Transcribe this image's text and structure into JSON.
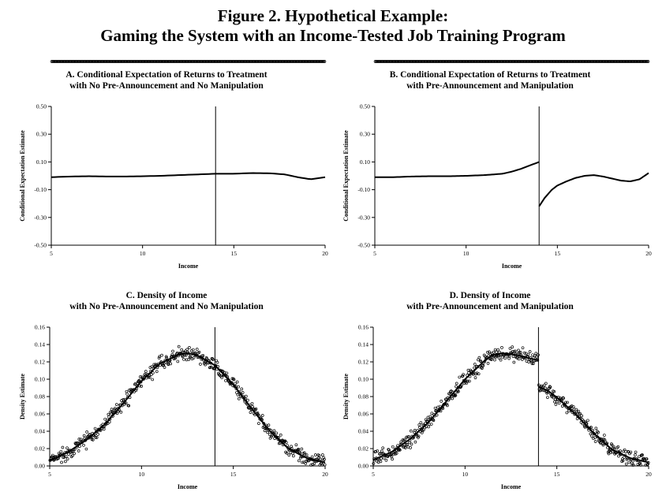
{
  "figure": {
    "title_line1": "Figure 2. Hypothetical Example:",
    "title_line2": "Gaming the System with an Income-Tested Job Training Program"
  },
  "colors": {
    "ink": "#000000",
    "background": "#ffffff"
  },
  "chart_data": [
    {
      "id": "A",
      "type": "scatter",
      "title_line1": "A. Conditional Expectation of Returns to Treatment",
      "title_line2": "with No Pre-Announcement and No Manipulation",
      "xlabel": "Income",
      "ylabel": "Conditional Expectation Estimate",
      "xlim": [
        5,
        20
      ],
      "ylim": [
        -0.5,
        0.5
      ],
      "xticks": [
        5,
        10,
        15,
        20
      ],
      "xtick_labels": [
        "5",
        "10",
        "15",
        "20"
      ],
      "yticks": [
        -0.5,
        -0.3,
        -0.1,
        0.1,
        0.3,
        0.5
      ],
      "ytick_labels": [
        "-0.50",
        "-0.30",
        "-0.10",
        "0.10",
        "0.30",
        "0.50"
      ],
      "cutoff": 14,
      "fit_segments": [
        {
          "x": [
            5,
            6,
            7,
            8,
            9,
            10,
            11,
            12,
            13,
            14,
            15,
            16,
            17,
            17.8,
            18.5,
            19.2,
            20
          ],
          "y": [
            -0.01,
            -0.005,
            -0.003,
            -0.005,
            -0.005,
            -0.003,
            0.0,
            0.005,
            0.01,
            0.015,
            0.015,
            0.02,
            0.018,
            0.01,
            -0.01,
            -0.025,
            -0.01
          ]
        }
      ],
      "points_model": {
        "n": 300,
        "pattern": "smooth",
        "noise_center": 0.06,
        "noise_edges": 0.2,
        "seed": 11
      }
    },
    {
      "id": "B",
      "type": "scatter",
      "title_line1": "B. Conditional Expectation of Returns to Treatment",
      "title_line2": "with Pre-Announcement and Manipulation",
      "xlabel": "Income",
      "ylabel": "Conditional Expectation Estimate",
      "xlim": [
        5,
        20
      ],
      "ylim": [
        -0.5,
        0.5
      ],
      "xticks": [
        5,
        10,
        15,
        20
      ],
      "xtick_labels": [
        "5",
        "10",
        "15",
        "20"
      ],
      "yticks": [
        -0.5,
        -0.3,
        -0.1,
        0.1,
        0.3,
        0.5
      ],
      "ytick_labels": [
        "-0.50",
        "-0.30",
        "-0.10",
        "0.10",
        "0.30",
        "0.50"
      ],
      "cutoff": 14,
      "fit_segments": [
        {
          "x": [
            5,
            6,
            7,
            8,
            9,
            10,
            11,
            12,
            12.5,
            13,
            13.5,
            14
          ],
          "y": [
            -0.01,
            -0.01,
            -0.005,
            -0.003,
            -0.003,
            0.0,
            0.005,
            0.015,
            0.03,
            0.05,
            0.075,
            0.1
          ]
        },
        {
          "x": [
            14,
            14.3,
            14.7,
            15,
            15.5,
            16,
            16.5,
            17,
            17.5,
            18,
            18.5,
            19,
            19.5,
            20
          ],
          "y": [
            -0.22,
            -0.16,
            -0.1,
            -0.07,
            -0.04,
            -0.015,
            0.0,
            0.005,
            -0.005,
            -0.02,
            -0.035,
            -0.04,
            -0.025,
            0.02
          ]
        }
      ],
      "points_model": {
        "n": 300,
        "pattern": "jump",
        "noise_center": 0.06,
        "noise_edges": 0.2,
        "seed": 23
      }
    },
    {
      "id": "C",
      "type": "scatter",
      "title_line1": "C. Density of Income",
      "title_line2": "with No Pre-Announcement and No Manipulation",
      "xlabel": "Income",
      "ylabel": "Density Estimate",
      "xlim": [
        5,
        20
      ],
      "ylim": [
        0,
        0.16
      ],
      "xticks": [
        5,
        10,
        15,
        20
      ],
      "xtick_labels": [
        "5",
        "10",
        "15",
        "20"
      ],
      "yticks": [
        0,
        0.02,
        0.04,
        0.06,
        0.08,
        0.1,
        0.12,
        0.14,
        0.16
      ],
      "ytick_labels": [
        "0.00",
        "0.02",
        "0.04",
        "0.06",
        "0.08",
        "0.10",
        "0.12",
        "0.14",
        "0.16"
      ],
      "cutoff": 14,
      "fit_segments": [
        {
          "x": [
            5,
            6,
            7,
            8,
            9,
            10,
            11,
            12,
            12.5,
            13,
            14,
            15,
            16,
            17,
            18,
            19,
            20
          ],
          "y": [
            0.006,
            0.016,
            0.03,
            0.048,
            0.072,
            0.098,
            0.118,
            0.128,
            0.13,
            0.128,
            0.116,
            0.094,
            0.066,
            0.04,
            0.02,
            0.009,
            0.004
          ]
        }
      ],
      "points_model": {
        "n": 500,
        "pattern": "smooth",
        "noise": 0.005,
        "seed": 37
      }
    },
    {
      "id": "D",
      "type": "scatter",
      "title_line1": "D. Density of Income",
      "title_line2": "with Pre-Announcement and Manipulation",
      "xlabel": "Income",
      "ylabel": "Density Estimate",
      "xlim": [
        5,
        20
      ],
      "ylim": [
        0,
        0.16
      ],
      "xticks": [
        5,
        10,
        15,
        20
      ],
      "xtick_labels": [
        "5",
        "10",
        "15",
        "20"
      ],
      "yticks": [
        0,
        0.02,
        0.04,
        0.06,
        0.08,
        0.1,
        0.12,
        0.14,
        0.16
      ],
      "ytick_labels": [
        "0.00",
        "0.02",
        "0.04",
        "0.06",
        "0.08",
        "0.10",
        "0.12",
        "0.14",
        "0.16"
      ],
      "cutoff": 14,
      "fit_segments": [
        {
          "x": [
            5,
            6,
            7,
            8,
            9,
            10,
            11,
            11.5,
            12,
            12.5,
            13,
            13.5,
            14
          ],
          "y": [
            0.007,
            0.016,
            0.031,
            0.05,
            0.075,
            0.1,
            0.12,
            0.128,
            0.13,
            0.129,
            0.127,
            0.124,
            0.122
          ]
        },
        {
          "x": [
            14,
            14.5,
            15,
            16,
            17,
            18,
            19,
            20
          ],
          "y": [
            0.091,
            0.087,
            0.079,
            0.06,
            0.038,
            0.019,
            0.009,
            0.004
          ]
        }
      ],
      "points_model": {
        "n": 500,
        "pattern": "jump",
        "noise": 0.005,
        "seed": 53
      }
    }
  ]
}
